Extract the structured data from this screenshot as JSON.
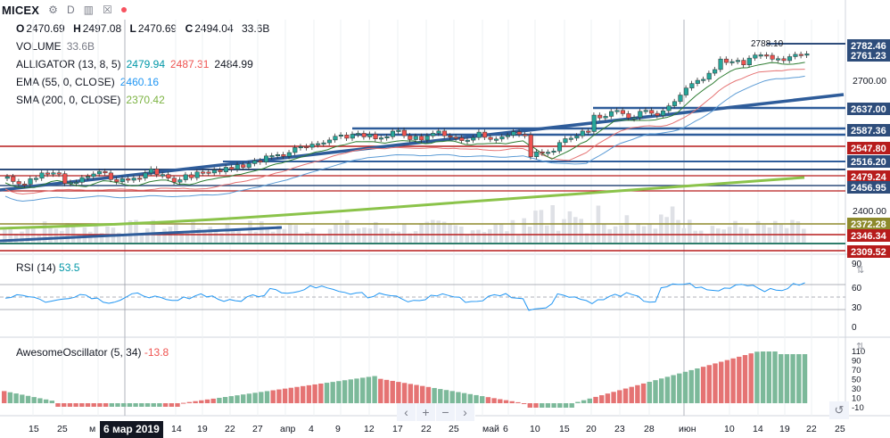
{
  "header": {
    "symbol": "MICEX",
    "interval": "D",
    "ohlc": {
      "o_label": "O",
      "o": "2470.69",
      "h_label": "H",
      "h": "2497.08",
      "l_label": "L",
      "l": "2470.69",
      "c_label": "C",
      "c": "2494.04",
      "vol": "33.6B"
    }
  },
  "indicators": {
    "volume": {
      "label": "VOLUME",
      "value": "33.6B"
    },
    "alligator": {
      "label": "ALLIGATOR (13, 8, 5)",
      "v1": "2479.94",
      "v2": "2487.31",
      "v3": "2484.99"
    },
    "ema": {
      "label": "EMA (55, 0, CLOSE)",
      "value": "2460.16"
    },
    "sma": {
      "label": "SMA (200, 0, CLOSE)",
      "value": "2370.42"
    }
  },
  "price_axis": {
    "labels": [
      "2700.00",
      "2400.00"
    ],
    "badges": [
      {
        "text": "2782.46",
        "bg": "#2e4d7b"
      },
      {
        "text": "2761.23",
        "bg": "#2e4d7b"
      },
      {
        "text": "2637.00",
        "bg": "#2e4d7b"
      },
      {
        "text": "2587.36",
        "bg": "#2e4d7b"
      },
      {
        "text": "2547.80",
        "bg": "#b71c1c"
      },
      {
        "text": "2516.20",
        "bg": "#2e4d7b"
      },
      {
        "text": "2479.24",
        "bg": "#b71c1c"
      },
      {
        "text": "2456.95",
        "bg": "#2e4d7b"
      },
      {
        "text": "2372.28",
        "bg": "#8d8a2c"
      },
      {
        "text": "2346.34",
        "bg": "#b71c1c"
      },
      {
        "text": "2309.52",
        "bg": "#b71c1c"
      }
    ],
    "callout": "2788.10"
  },
  "rsi": {
    "label": "RSI (14)",
    "value": "53.5",
    "ticks": [
      "90",
      "60",
      "30",
      "0"
    ]
  },
  "ao": {
    "label": "AwesomeOscillator (5, 34)",
    "value": "-13.8",
    "ticks": [
      "110",
      "90",
      "70",
      "50",
      "30",
      "10",
      "-10"
    ]
  },
  "time_axis": {
    "labels": [
      "15",
      "25",
      "м",
      "14",
      "19",
      "22",
      "27",
      "апр",
      "4",
      "9",
      "12",
      "17",
      "22",
      "25",
      "май",
      "6",
      "10",
      "15",
      "20",
      "23",
      "28",
      "июн",
      "10",
      "14",
      "19",
      "22",
      "25"
    ],
    "cursor_date": "6 мар 2019"
  },
  "colors": {
    "up": "#26a69a",
    "down": "#ef5350",
    "sma": "#8bc34a",
    "ema": "#2196f3",
    "trend": "#2e5c9a"
  }
}
